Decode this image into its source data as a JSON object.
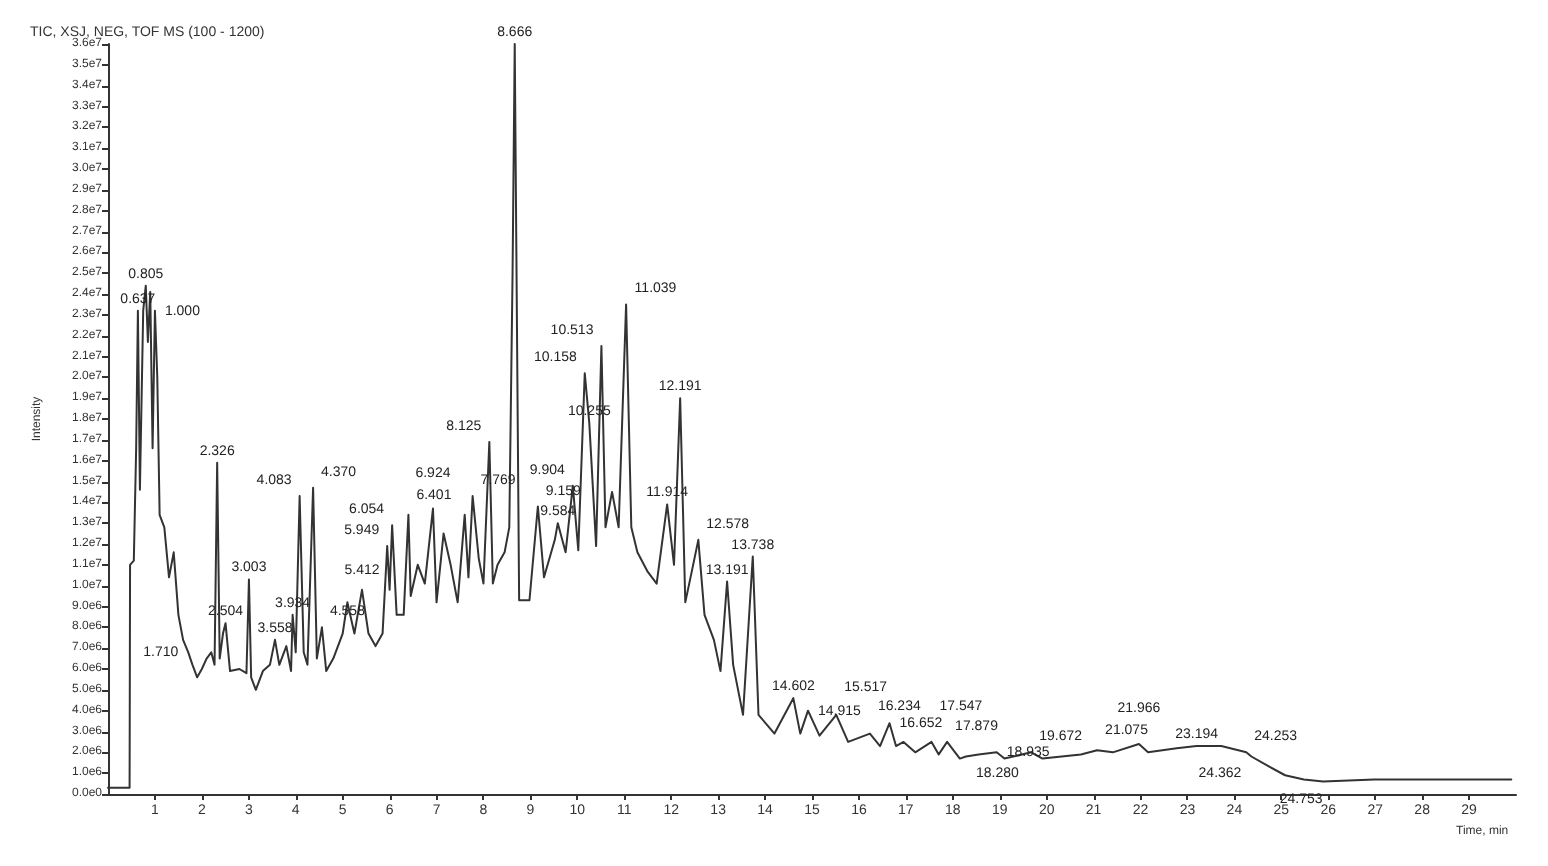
{
  "chart_data": {
    "type": "line",
    "title": "TIC, XSJ, NEG, TOF MS (100 - 1200)",
    "xlabel": "Time, min",
    "ylabel": "Intensity",
    "grid": false,
    "marker": "none",
    "line_style": "solid",
    "xlim": [
      0,
      30
    ],
    "xticks": [
      1,
      2,
      3,
      4,
      5,
      6,
      7,
      8,
      9,
      10,
      11,
      12,
      13,
      14,
      15,
      16,
      17,
      18,
      19,
      20,
      21,
      22,
      23,
      24,
      25,
      26,
      27,
      28,
      29
    ],
    "ylim": [
      0,
      36000000.0
    ],
    "yticks": [
      {
        "value": 0,
        "label": "0.0e0"
      },
      {
        "value": 1000000.0,
        "label": "1.0e6"
      },
      {
        "value": 2000000.0,
        "label": "2.0e6"
      },
      {
        "value": 3000000.0,
        "label": "3.0e6"
      },
      {
        "value": 4000000.0,
        "label": "4.0e6"
      },
      {
        "value": 5000000.0,
        "label": "5.0e6"
      },
      {
        "value": 6000000.0,
        "label": "6.0e6"
      },
      {
        "value": 7000000.0,
        "label": "7.0e6"
      },
      {
        "value": 8000000.0,
        "label": "8.0e6"
      },
      {
        "value": 9000000.0,
        "label": "9.0e6"
      },
      {
        "value": 10000000.0,
        "label": "1.0e7"
      },
      {
        "value": 11000000.0,
        "label": "1.1e7"
      },
      {
        "value": 12000000.0,
        "label": "1.2e7"
      },
      {
        "value": 13000000.0,
        "label": "1.3e7"
      },
      {
        "value": 14000000.0,
        "label": "1.4e7"
      },
      {
        "value": 15000000.0,
        "label": "1.5e7"
      },
      {
        "value": 16000000.0,
        "label": "1.6e7"
      },
      {
        "value": 17000000.0,
        "label": "1.7e7"
      },
      {
        "value": 18000000.0,
        "label": "1.8e7"
      },
      {
        "value": 19000000.0,
        "label": "1.9e7"
      },
      {
        "value": 20000000.0,
        "label": "2.0e7"
      },
      {
        "value": 21000000.0,
        "label": "2.1e7"
      },
      {
        "value": 22000000.0,
        "label": "2.2e7"
      },
      {
        "value": 23000000.0,
        "label": "2.3e7"
      },
      {
        "value": 24000000.0,
        "label": "2.4e7"
      },
      {
        "value": 25000000.0,
        "label": "2.5e7"
      },
      {
        "value": 26000000.0,
        "label": "2.6e7"
      },
      {
        "value": 27000000.0,
        "label": "2.7e7"
      },
      {
        "value": 28000000.0,
        "label": "2.8e7"
      },
      {
        "value": 29000000.0,
        "label": "2.9e7"
      },
      {
        "value": 30000000.0,
        "label": "3.0e7"
      },
      {
        "value": 31000000.0,
        "label": "3.1e7"
      },
      {
        "value": 32000000.0,
        "label": "3.2e7"
      },
      {
        "value": 33000000.0,
        "label": "3.3e7"
      },
      {
        "value": 34000000.0,
        "label": "3.4e7"
      },
      {
        "value": 35000000.0,
        "label": "3.5e7"
      },
      {
        "value": 36000000.0,
        "label": "3.6e7"
      }
    ],
    "series": [
      {
        "color": "#333333",
        "x": [
          0,
          0.46,
          0.47,
          0.55,
          0.6,
          0.637,
          0.68,
          0.75,
          0.805,
          0.85,
          0.9,
          0.95,
          1.0,
          1.05,
          1.1,
          1.2,
          1.3,
          1.4,
          1.5,
          1.6,
          1.71,
          1.8,
          1.9,
          2.0,
          2.1,
          2.2,
          2.27,
          2.326,
          2.38,
          2.45,
          2.504,
          2.6,
          2.8,
          2.95,
          3.003,
          3.05,
          3.15,
          3.3,
          3.45,
          3.558,
          3.65,
          3.8,
          3.9,
          3.934,
          4.0,
          4.083,
          4.17,
          4.25,
          4.37,
          4.45,
          4.558,
          4.65,
          4.8,
          5.0,
          5.1,
          5.25,
          5.412,
          5.55,
          5.7,
          5.85,
          5.949,
          6.0,
          6.054,
          6.15,
          6.3,
          6.401,
          6.45,
          6.6,
          6.75,
          6.924,
          7.0,
          7.15,
          7.3,
          7.45,
          7.6,
          7.68,
          7.769,
          7.9,
          8.0,
          8.125,
          8.2,
          8.3,
          8.45,
          8.55,
          8.62,
          8.666,
          8.76,
          8.98,
          9.159,
          9.29,
          9.52,
          9.584,
          9.75,
          9.904,
          10.02,
          10.158,
          10.255,
          10.4,
          10.513,
          10.6,
          10.74,
          10.88,
          11.039,
          11.15,
          11.28,
          11.49,
          11.69,
          11.914,
          12.06,
          12.191,
          12.3,
          12.44,
          12.578,
          12.71,
          12.91,
          13.05,
          13.191,
          13.32,
          13.53,
          13.738,
          13.86,
          14.2,
          14.602,
          14.75,
          14.915,
          15.16,
          15.517,
          15.77,
          16.234,
          16.45,
          16.652,
          16.79,
          16.95,
          17.2,
          17.547,
          17.7,
          17.879,
          18.15,
          18.28,
          18.55,
          18.935,
          19.1,
          19.672,
          19.91,
          20.73,
          21.075,
          21.41,
          21.966,
          22.16,
          22.77,
          23.194,
          23.72,
          24.253,
          24.362,
          24.753,
          25.08,
          25.48,
          25.89,
          26.98,
          28,
          29.9
        ],
        "values": [
          300000.0,
          300000.0,
          11000000.0,
          11200000.0,
          16600000.0,
          23200000.0,
          14600000.0,
          23200000.0,
          24400000.0,
          21700000.0,
          24100000.0,
          16600000.0,
          23200000.0,
          20000000.0,
          13400000.0,
          12800000.0,
          10400000.0,
          11600000.0,
          8600000.0,
          7400000.0,
          6800000.0,
          6200000.0,
          5600000.0,
          6000000.0,
          6500000.0,
          6800000.0,
          6200000.0,
          15900000.0,
          6500000.0,
          7700000.0,
          8200000.0,
          5900000.0,
          6000000.0,
          5800000.0,
          10300000.0,
          5600000.0,
          5000000.0,
          5900000.0,
          6200000.0,
          7400000.0,
          6200000.0,
          7100000.0,
          5900000.0,
          8600000.0,
          6800000.0,
          14300000.0,
          6800000.0,
          6200000.0,
          14700000.0,
          6500000.0,
          8000000.0,
          5900000.0,
          6500000.0,
          7700000.0,
          9200000.0,
          7700000.0,
          9800000.0,
          7700000.0,
          7100000.0,
          7700000.0,
          11900000.0,
          9800000.0,
          12900000.0,
          8600000.0,
          8600000.0,
          13400000.0,
          9500000.0,
          11000000.0,
          10100000.0,
          13700000.0,
          9200000.0,
          12500000.0,
          11000000.0,
          9200000.0,
          13400000.0,
          10400000.0,
          14300000.0,
          11300000.0,
          10100000.0,
          16900000.0,
          10100000.0,
          11000000.0,
          11600000.0,
          12800000.0,
          25000000.0,
          36000000.0,
          9300000.0,
          9300000.0,
          13800000.0,
          10400000.0,
          12200000.0,
          13000000.0,
          11600000.0,
          14800000.0,
          11700000.0,
          20200000.0,
          17800000.0,
          11900000.0,
          21500000.0,
          12800000.0,
          14500000.0,
          12800000.0,
          23500000.0,
          12800000.0,
          11600000.0,
          10700000.0,
          10100000.0,
          13900000.0,
          11000000.0,
          19000000.0,
          9200000.0,
          10700000.0,
          12200000.0,
          8600000.0,
          7400000.0,
          5900000.0,
          10200000.0,
          6200000.0,
          3800000.0,
          11400000.0,
          3800000.0,
          2900000.0,
          4600000.0,
          2900000.0,
          4000000.0,
          2800000.0,
          3800000.0,
          2500000.0,
          2900000.0,
          2300000.0,
          3400000.0,
          2300000.0,
          2500000.0,
          2000000.0,
          2500000.0,
          1900000.0,
          2500000.0,
          1700000.0,
          1800000.0,
          1900000.0,
          2000000.0,
          1700000.0,
          2000000.0,
          1700000.0,
          1900000.0,
          2100000.0,
          2000000.0,
          2400000.0,
          2000000.0,
          2200000.0,
          2300000.0,
          2300000.0,
          2000000.0,
          1800000.0,
          1300000.0,
          900000.0,
          700000.0,
          600000.0,
          700000.0,
          700000.0,
          700000.0
        ]
      }
    ],
    "annotations": [
      {
        "text": "0.637",
        "x": 0.637,
        "y": 23200000.0
      },
      {
        "text": "0.805",
        "x": 0.805,
        "y": 24400000.0
      },
      {
        "text": "1.000",
        "x": 1.0,
        "y": 23200000.0
      },
      {
        "text": "1.710",
        "x": 1.71,
        "y": 6800000.0
      },
      {
        "text": "2.326",
        "x": 2.326,
        "y": 15900000.0
      },
      {
        "text": "2.504",
        "x": 2.504,
        "y": 8200000.0
      },
      {
        "text": "3.003",
        "x": 3.003,
        "y": 10300000.0
      },
      {
        "text": "3.558",
        "x": 3.558,
        "y": 7400000.0
      },
      {
        "text": "3.934",
        "x": 3.934,
        "y": 8600000.0
      },
      {
        "text": "4.083",
        "x": 4.083,
        "y": 14300000.0
      },
      {
        "text": "4.370",
        "x": 4.37,
        "y": 14700000.0
      },
      {
        "text": "4.558",
        "x": 4.558,
        "y": 8000000.0
      },
      {
        "text": "5.412",
        "x": 5.412,
        "y": 9800000.0
      },
      {
        "text": "5.949",
        "x": 5.949,
        "y": 11900000.0
      },
      {
        "text": "6.054",
        "x": 6.054,
        "y": 12900000.0
      },
      {
        "text": "6.401",
        "x": 6.401,
        "y": 13400000.0
      },
      {
        "text": "6.924",
        "x": 6.924,
        "y": 13700000.0
      },
      {
        "text": "7.769",
        "x": 7.769,
        "y": 14300000.0
      },
      {
        "text": "8.125",
        "x": 8.125,
        "y": 16900000.0
      },
      {
        "text": "8.666",
        "x": 8.666,
        "y": 36000000.0
      },
      {
        "text": "9.159",
        "x": 9.159,
        "y": 13800000.0
      },
      {
        "text": "9.584",
        "x": 9.584,
        "y": 13000000.0
      },
      {
        "text": "9.904",
        "x": 9.904,
        "y": 14800000.0
      },
      {
        "text": "10.158",
        "x": 10.158,
        "y": 20200000.0
      },
      {
        "text": "10.255",
        "x": 10.255,
        "y": 17800000.0
      },
      {
        "text": "10.513",
        "x": 10.513,
        "y": 21500000.0
      },
      {
        "text": "11.039",
        "x": 11.039,
        "y": 23500000.0
      },
      {
        "text": "11.914",
        "x": 11.914,
        "y": 13900000.0
      },
      {
        "text": "12.191",
        "x": 12.191,
        "y": 19000000.0
      },
      {
        "text": "12.578",
        "x": 12.578,
        "y": 12200000.0
      },
      {
        "text": "13.191",
        "x": 13.191,
        "y": 10200000.0
      },
      {
        "text": "13.738",
        "x": 13.738,
        "y": 11400000.0
      },
      {
        "text": "14.602",
        "x": 14.602,
        "y": 4600000.0
      },
      {
        "text": "14.915",
        "x": 14.915,
        "y": 4000000.0
      },
      {
        "text": "15.517",
        "x": 15.517,
        "y": 3800000.0
      },
      {
        "text": "16.234",
        "x": 16.234,
        "y": 2900000.0
      },
      {
        "text": "16.652",
        "x": 16.652,
        "y": 3400000.0
      },
      {
        "text": "17.547",
        "x": 17.547,
        "y": 2500000.0
      },
      {
        "text": "17.879",
        "x": 17.879,
        "y": 2500000.0
      },
      {
        "text": "18.280",
        "x": 18.28,
        "y": 1800000.0
      },
      {
        "text": "18.935",
        "x": 18.935,
        "y": 2000000.0
      },
      {
        "text": "19.672",
        "x": 19.672,
        "y": 2000000.0
      },
      {
        "text": "21.075",
        "x": 21.075,
        "y": 2100000.0
      },
      {
        "text": "21.966",
        "x": 21.966,
        "y": 2400000.0
      },
      {
        "text": "23.194",
        "x": 23.194,
        "y": 2300000.0
      },
      {
        "text": "24.253",
        "x": 24.253,
        "y": 2000000.0
      },
      {
        "text": "24.362",
        "x": 24.362,
        "y": 1800000.0
      },
      {
        "text": "24.753",
        "x": 24.753,
        "y": 1300000.0
      }
    ]
  }
}
